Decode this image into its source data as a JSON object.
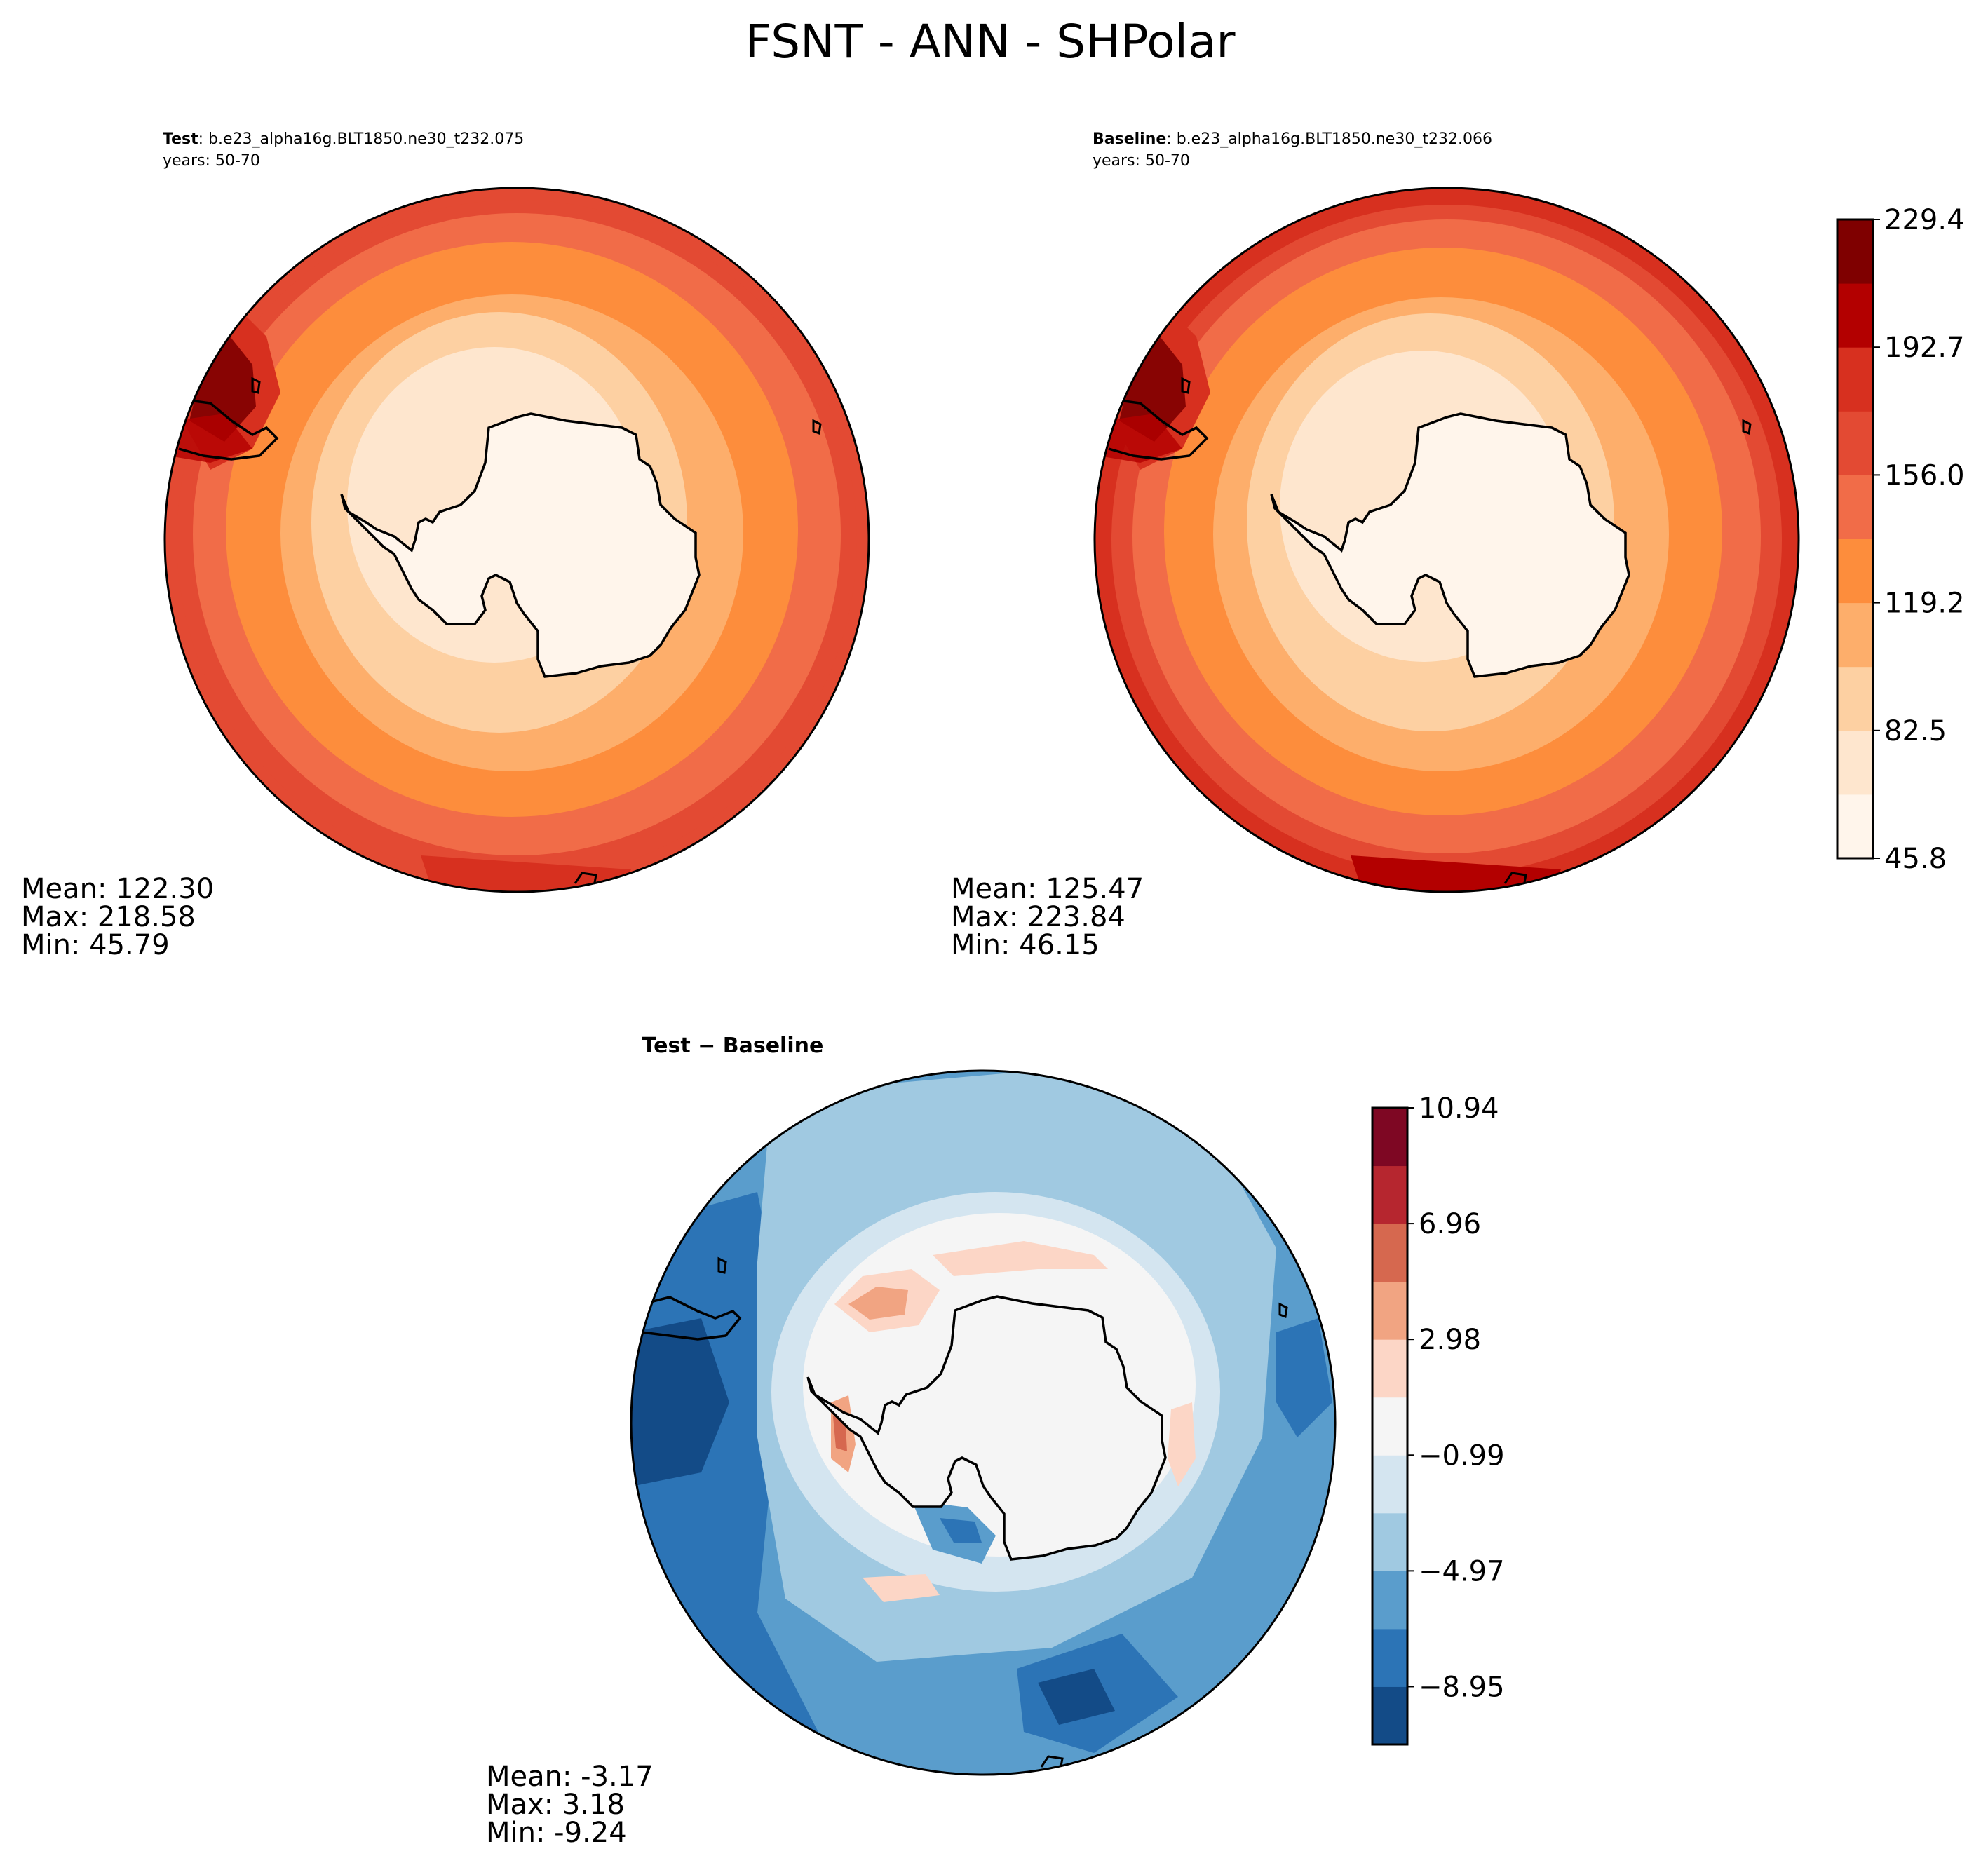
{
  "title": "FSNT - ANN - SHPolar",
  "panels": {
    "test": {
      "label_bold": "Test",
      "label_rest": ": b.e23_alpha16g.BLT1850.ne30_t232.075",
      "years": "years: 50-70",
      "stats": {
        "mean": "Mean: 122.30",
        "max": "Max: 218.58",
        "min": "Min: 45.79"
      }
    },
    "baseline": {
      "label_bold": "Baseline",
      "label_rest": ": b.e23_alpha16g.BLT1850.ne30_t232.066",
      "years": "years: 50-70",
      "stats": {
        "mean": "Mean: 125.47",
        "max": "Max: 223.84",
        "min": "Min: 46.15"
      }
    },
    "diff": {
      "label": "Test − Baseline",
      "stats": {
        "mean": "Mean: -3.17",
        "max": "Max:  3.18",
        "min": "Min: -9.24"
      }
    }
  },
  "colorbars": {
    "field": {
      "tick_labels": [
        "45.8",
        "82.5",
        "119.2",
        "156.0",
        "192.7",
        "229.4"
      ],
      "colors": [
        "#fff5eb",
        "#fee6ce",
        "#fdd0a2",
        "#fdae6b",
        "#fd8d3c",
        "#f16c48",
        "#e34a33",
        "#d7301f",
        "#b30000",
        "#7f0000"
      ]
    },
    "diff": {
      "tick_labels": [
        "−8.95",
        "−4.97",
        "−0.99",
        "2.98",
        "6.96",
        "10.94"
      ],
      "colors": [
        "#134b87",
        "#2c74b6",
        "#5a9dcc",
        "#a0c9e1",
        "#d4e5f0",
        "#f5f5f5",
        "#fcd6c6",
        "#f1a482",
        "#d6684f",
        "#b6262f",
        "#7e0723"
      ]
    }
  }
}
